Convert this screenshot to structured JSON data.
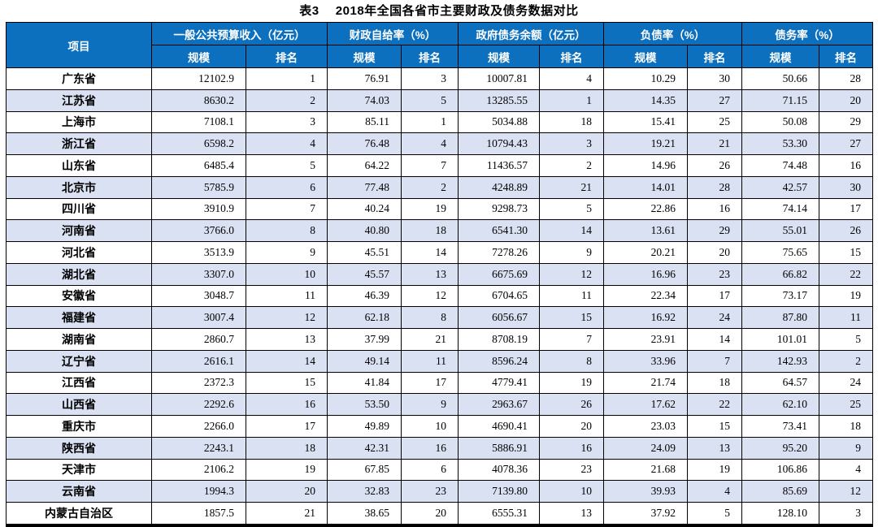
{
  "page": {
    "title": "表3　 2018年全国各省市主要财政及债务数据对比"
  },
  "colors": {
    "header_bg": "#0d70be",
    "alt_row_bg": "#d9e1f2",
    "border": "#000000",
    "header_text": "#ffffff"
  },
  "table": {
    "item_header": "项目",
    "groups": [
      "一般公共预算收入（亿元）",
      "财政自给率（%）",
      "政府债务余额（亿元）",
      "负债率（%）",
      "债务率（%）"
    ],
    "sub_headers": [
      "规模",
      "排名"
    ],
    "rows": [
      [
        "广东省",
        "12102.9",
        "1",
        "76.91",
        "3",
        "10007.81",
        "4",
        "10.29",
        "30",
        "50.66",
        "28"
      ],
      [
        "江苏省",
        "8630.2",
        "2",
        "74.03",
        "5",
        "13285.55",
        "1",
        "14.35",
        "27",
        "71.15",
        "20"
      ],
      [
        "上海市",
        "7108.1",
        "3",
        "85.11",
        "1",
        "5034.88",
        "18",
        "15.41",
        "25",
        "50.08",
        "29"
      ],
      [
        "浙江省",
        "6598.2",
        "4",
        "76.48",
        "4",
        "10794.43",
        "3",
        "19.21",
        "21",
        "53.30",
        "27"
      ],
      [
        "山东省",
        "6485.4",
        "5",
        "64.22",
        "7",
        "11436.57",
        "2",
        "14.96",
        "26",
        "74.48",
        "16"
      ],
      [
        "北京市",
        "5785.9",
        "6",
        "77.48",
        "2",
        "4248.89",
        "21",
        "14.01",
        "28",
        "42.57",
        "30"
      ],
      [
        "四川省",
        "3910.9",
        "7",
        "40.24",
        "19",
        "9298.73",
        "5",
        "22.86",
        "16",
        "74.14",
        "17"
      ],
      [
        "河南省",
        "3766.0",
        "8",
        "40.80",
        "18",
        "6541.30",
        "14",
        "13.61",
        "29",
        "55.01",
        "26"
      ],
      [
        "河北省",
        "3513.9",
        "9",
        "45.51",
        "14",
        "7278.26",
        "9",
        "20.21",
        "20",
        "75.65",
        "15"
      ],
      [
        "湖北省",
        "3307.0",
        "10",
        "45.57",
        "13",
        "6675.69",
        "12",
        "16.96",
        "23",
        "66.82",
        "22"
      ],
      [
        "安徽省",
        "3048.7",
        "11",
        "46.39",
        "12",
        "6704.65",
        "11",
        "22.34",
        "17",
        "73.17",
        "19"
      ],
      [
        "福建省",
        "3007.4",
        "12",
        "62.18",
        "8",
        "6056.67",
        "15",
        "16.92",
        "24",
        "87.80",
        "11"
      ],
      [
        "湖南省",
        "2860.7",
        "13",
        "37.99",
        "21",
        "8708.19",
        "7",
        "23.91",
        "14",
        "101.01",
        "5"
      ],
      [
        "辽宁省",
        "2616.1",
        "14",
        "49.14",
        "11",
        "8596.24",
        "8",
        "33.96",
        "7",
        "142.93",
        "2"
      ],
      [
        "江西省",
        "2372.3",
        "15",
        "41.84",
        "17",
        "4779.41",
        "19",
        "21.74",
        "18",
        "64.57",
        "24"
      ],
      [
        "山西省",
        "2292.6",
        "16",
        "53.50",
        "9",
        "2963.67",
        "26",
        "17.62",
        "22",
        "62.10",
        "25"
      ],
      [
        "重庆市",
        "2266.0",
        "17",
        "49.89",
        "10",
        "4690.41",
        "20",
        "23.03",
        "15",
        "73.41",
        "18"
      ],
      [
        "陕西省",
        "2243.1",
        "18",
        "42.31",
        "16",
        "5886.91",
        "16",
        "24.09",
        "13",
        "95.20",
        "9"
      ],
      [
        "天津市",
        "2106.2",
        "19",
        "67.85",
        "6",
        "4078.36",
        "23",
        "21.68",
        "19",
        "106.86",
        "4"
      ],
      [
        "云南省",
        "1994.3",
        "20",
        "32.83",
        "23",
        "7139.80",
        "10",
        "39.93",
        "4",
        "85.69",
        "12"
      ],
      [
        "内蒙古自治区",
        "1857.5",
        "21",
        "38.65",
        "20",
        "6555.31",
        "13",
        "37.92",
        "5",
        "128.10",
        "3"
      ]
    ]
  }
}
